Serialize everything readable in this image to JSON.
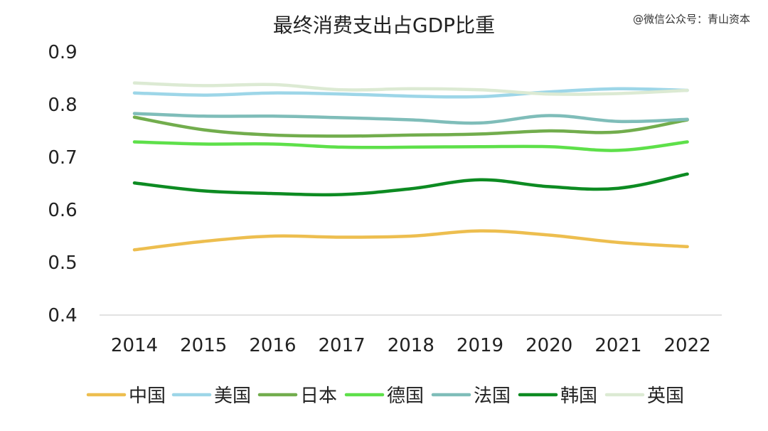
{
  "watermark": "@微信公众号：青山资本",
  "chart_data": {
    "type": "line",
    "title": "最终消费支出占GDP比重",
    "x": [
      "2014",
      "2015",
      "2016",
      "2017",
      "2018",
      "2019",
      "2020",
      "2021",
      "2022"
    ],
    "ylim": [
      0.4,
      0.9
    ],
    "yticks": [
      "0.4",
      "0.5",
      "0.6",
      "0.7",
      "0.8",
      "0.9"
    ],
    "grid": false,
    "legend_position": "bottom",
    "series": [
      {
        "name": "中国",
        "color": "#EDBE4F",
        "values": [
          0.524,
          0.54,
          0.55,
          0.548,
          0.55,
          0.56,
          0.552,
          0.538,
          0.53
        ]
      },
      {
        "name": "美国",
        "color": "#9DD6E8",
        "values": [
          0.822,
          0.818,
          0.822,
          0.82,
          0.816,
          0.815,
          0.824,
          0.83,
          0.827
        ]
      },
      {
        "name": "日本",
        "color": "#72AD4D",
        "values": [
          0.776,
          0.752,
          0.742,
          0.74,
          0.742,
          0.744,
          0.75,
          0.748,
          0.771
        ]
      },
      {
        "name": "德国",
        "color": "#5EE04A",
        "values": [
          0.729,
          0.725,
          0.725,
          0.719,
          0.719,
          0.72,
          0.72,
          0.713,
          0.729
        ]
      },
      {
        "name": "法国",
        "color": "#7FBDB9",
        "values": [
          0.783,
          0.778,
          0.778,
          0.775,
          0.771,
          0.765,
          0.779,
          0.768,
          0.772
        ]
      },
      {
        "name": "韩国",
        "color": "#0D8B22",
        "values": [
          0.651,
          0.636,
          0.631,
          0.629,
          0.64,
          0.657,
          0.644,
          0.641,
          0.668
        ]
      },
      {
        "name": "英国",
        "color": "#DCEAD3",
        "values": [
          0.841,
          0.836,
          0.838,
          0.828,
          0.83,
          0.828,
          0.82,
          0.821,
          0.827
        ]
      }
    ]
  }
}
